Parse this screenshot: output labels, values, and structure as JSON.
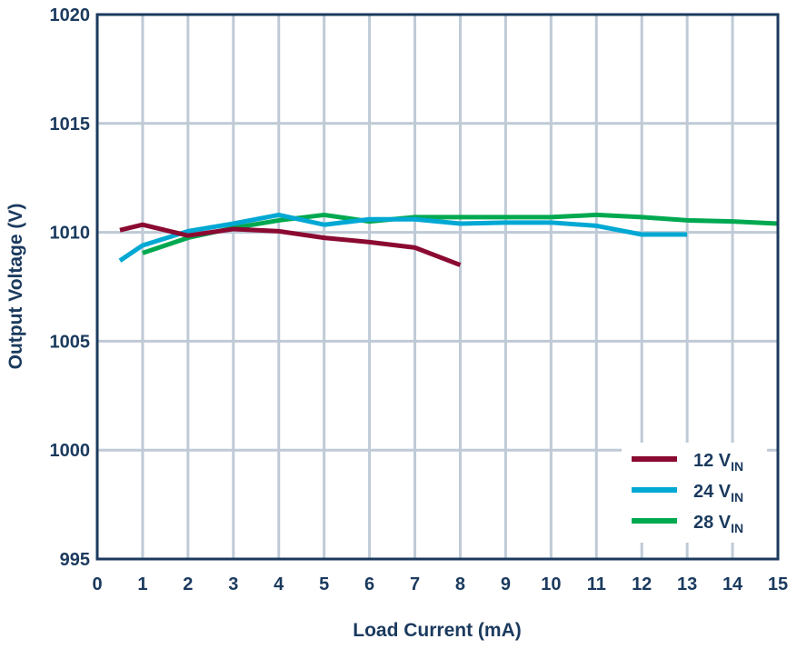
{
  "chart_data": {
    "type": "line",
    "title": "",
    "xlabel": "Load Current (mA)",
    "ylabel": "Output Voltage (V)",
    "xlim": [
      0,
      15
    ],
    "ylim": [
      995,
      1020
    ],
    "xticks": [
      0,
      1,
      2,
      3,
      4,
      5,
      6,
      7,
      8,
      9,
      10,
      11,
      12,
      13,
      14,
      15
    ],
    "yticks": [
      995,
      1000,
      1005,
      1010,
      1015,
      1020
    ],
    "grid": true,
    "legend_position": "bottom-right",
    "series": [
      {
        "name": "12 V",
        "subscript": "IN",
        "color": "#8b0a32",
        "x": [
          0.5,
          1,
          2,
          3,
          4,
          5,
          6,
          7,
          8
        ],
        "y": [
          1010.1,
          1010.35,
          1009.85,
          1010.15,
          1010.05,
          1009.75,
          1009.55,
          1009.3,
          1008.5
        ]
      },
      {
        "name": "24 V",
        "subscript": "IN",
        "color": "#00a8d4",
        "x": [
          0.5,
          1,
          2,
          3,
          4,
          5,
          6,
          7,
          8,
          9,
          10,
          11,
          12,
          13
        ],
        "y": [
          1008.7,
          1009.4,
          1010.05,
          1010.4,
          1010.8,
          1010.35,
          1010.6,
          1010.6,
          1010.4,
          1010.45,
          1010.45,
          1010.3,
          1009.9,
          1009.9
        ]
      },
      {
        "name": "28 V",
        "subscript": "IN",
        "color": "#00a950",
        "x": [
          1,
          2,
          3,
          4,
          5,
          6,
          7,
          8,
          9,
          10,
          11,
          12,
          13,
          14,
          15
        ],
        "y": [
          1009.05,
          1009.75,
          1010.2,
          1010.55,
          1010.8,
          1010.5,
          1010.7,
          1010.7,
          1010.7,
          1010.7,
          1010.8,
          1010.7,
          1010.55,
          1010.5,
          1010.4
        ]
      }
    ]
  }
}
